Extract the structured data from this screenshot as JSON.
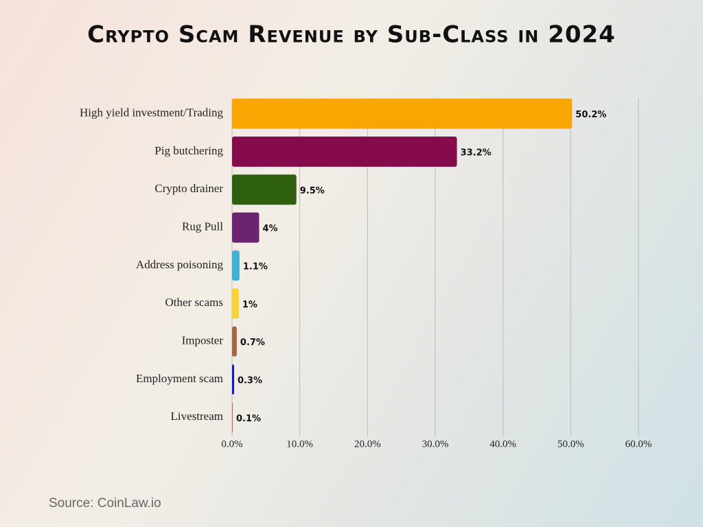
{
  "chart_data": {
    "type": "hbar",
    "title": "Crypto Scam Revenue by Sub-Class in 2024",
    "categories": [
      "High yield investment/Trading",
      "Pig butchering",
      "Crypto drainer",
      "Rug Pull",
      "Address poisoning",
      "Other scams",
      "Imposter",
      "Employment scam",
      "Livestream"
    ],
    "values": [
      50.2,
      33.2,
      9.5,
      4,
      1.1,
      1,
      0.7,
      0.3,
      0.1
    ],
    "value_labels": [
      "50.2%",
      "33.2%",
      "9.5%",
      "4%",
      "1.1%",
      "1%",
      "0.7%",
      "0.3%",
      "0.1%"
    ],
    "colors": [
      "#f9a602",
      "#850b4d",
      "#2f600d",
      "#6b2570",
      "#3db3d6",
      "#fbd22f",
      "#a9653e",
      "#0a16d6",
      "#e8534a"
    ],
    "xlim": [
      0,
      60
    ],
    "xticks": [
      {
        "value": 0,
        "label": "0.0%"
      },
      {
        "value": 10,
        "label": "10.0%"
      },
      {
        "value": 20,
        "label": "20.0%"
      },
      {
        "value": 30,
        "label": "30.0%"
      },
      {
        "value": 40,
        "label": "40.0%"
      },
      {
        "value": 50,
        "label": "50.0%"
      },
      {
        "value": 60,
        "label": "60.0%"
      }
    ],
    "grid": true,
    "source": "Source: CoinLaw.io"
  }
}
